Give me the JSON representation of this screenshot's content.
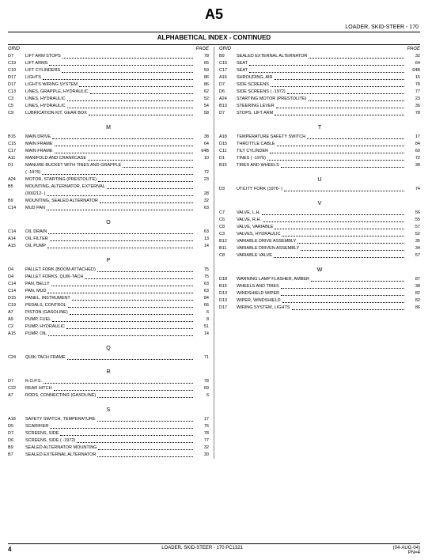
{
  "page_code": "A5",
  "header_sub": "LOADER, SKID-STEER - 170",
  "section_title": "ALPHABETICAL INDEX - CONTINUED",
  "column_headers": {
    "grid": "GRID",
    "page": "PAGE"
  },
  "footer": {
    "page_number": "4",
    "center": "LOADER, SKID-STEER - 170   PC1321",
    "right_top": "(04-AUG-04)",
    "right_bottom": "PN=4"
  },
  "left_blocks": [
    {
      "letter": null,
      "rows": [
        {
          "g": "D7",
          "l": "LIFT ARM STOPS",
          "p": "78"
        },
        {
          "g": "C19",
          "l": "LIFT ARMS",
          "p": "66"
        },
        {
          "g": "C10",
          "l": "LIFT CYLINDERS",
          "p": "59"
        },
        {
          "g": "D17",
          "l": "LIGHTS",
          "p": "86"
        },
        {
          "g": "D17",
          "l": "LIGHTS WIRING SYSTEM",
          "p": "86"
        },
        {
          "g": "C13",
          "l": "LINES, GRAPPLE, HYDRAULIC",
          "p": "62"
        },
        {
          "g": "C3",
          "l": "LINES, HYDRAULIC",
          "p": "52"
        },
        {
          "g": "C5",
          "l": "LINES, HYDRAULIC",
          "p": "54"
        },
        {
          "g": "C9",
          "l": "LUBRICATION KIT, GEAR BOX",
          "p": "58"
        }
      ]
    },
    {
      "letter": "M",
      "rows": [
        {
          "g": "B15",
          "l": "MAIN DRIVE",
          "p": "38"
        },
        {
          "g": "C15",
          "l": "MAIN FRAME",
          "p": "64"
        },
        {
          "g": "C17",
          "l": "MAIN FRAME",
          "p": "64B"
        },
        {
          "g": "A11",
          "l": "MANIFOLD AND CRANKCASE",
          "p": "10"
        },
        {
          "g": "D1",
          "l": "MANURE BUCKET WITH TINES AND GRAPPLE",
          "p": ""
        },
        {
          "g": "",
          "l": "(   -1976)",
          "p": "72"
        },
        {
          "g": "A24",
          "l": "MOTOR, STARTING (PRESTOLITE)",
          "p": "23"
        },
        {
          "g": "B5",
          "l": "MOUNTING, ALTERNATOR, EXTERNAL",
          "p": ""
        },
        {
          "g": "",
          "l": "(000212-    )",
          "p": "28"
        },
        {
          "g": "B9",
          "l": "MOUNTING, SEALED ALTERNATOR",
          "p": "32"
        },
        {
          "g": "C14",
          "l": "MUD PAN",
          "p": "63"
        }
      ]
    },
    {
      "letter": "O",
      "rows": [
        {
          "g": "C14",
          "l": "OIL DRAIN",
          "p": "63"
        },
        {
          "g": "A14",
          "l": "OIL FILTER",
          "p": "13"
        },
        {
          "g": "A15",
          "l": "OIL PUMP",
          "p": "14"
        }
      ]
    },
    {
      "letter": "P",
      "rows": [
        {
          "g": "D4",
          "l": "PALLET FORK (BOOM ATTACHED)",
          "p": "75"
        },
        {
          "g": "D4",
          "l": "PALLET FORKS, QUIK-TACH",
          "p": "75"
        },
        {
          "g": "C14",
          "l": "PAN, BELLY",
          "p": "63"
        },
        {
          "g": "C14",
          "l": "PAN, MUD",
          "p": "63"
        },
        {
          "g": "D15",
          "l": "PANEL, INSTRUMENT",
          "p": "84"
        },
        {
          "g": "C19",
          "l": "PEDALS, CONTROL",
          "p": "66"
        },
        {
          "g": "A7",
          "l": "PISTON (GASOLINE)",
          "p": "6"
        },
        {
          "g": "A9",
          "l": "PUMP, FUEL",
          "p": "8"
        },
        {
          "g": "C2",
          "l": "PUMP, HYDRAULIC",
          "p": "51"
        },
        {
          "g": "A15",
          "l": "PUMP, OIL",
          "p": "14"
        }
      ]
    },
    {
      "letter": "Q",
      "rows": [
        {
          "g": "C24",
          "l": "QUIK-TACH FRAME",
          "p": "71"
        }
      ]
    },
    {
      "letter": "R",
      "rows": [
        {
          "g": "D7",
          "l": "R.O.P.S.",
          "p": "78"
        },
        {
          "g": "C22",
          "l": "REAR HITCH",
          "p": "69"
        },
        {
          "g": "A7",
          "l": "RODS, CONNECTING (GASOLINE)",
          "p": "6"
        }
      ]
    },
    {
      "letter": "S",
      "rows": [
        {
          "g": "A18",
          "l": "SAFETY SWITCH, TEMPERATURE",
          "p": "17"
        },
        {
          "g": "D5",
          "l": "SCARIFIER",
          "p": "76"
        },
        {
          "g": "D7",
          "l": "SCREENS, SIDE",
          "p": "78"
        },
        {
          "g": "D6",
          "l": "SCREENS, SIDE (   -1972)",
          "p": "77"
        },
        {
          "g": "B9",
          "l": "SEALED ALTERNATOR MOUNTING",
          "p": "32"
        },
        {
          "g": "B7",
          "l": "SEALED EXTERNAL ALTERNATOR",
          "p": "30"
        }
      ]
    }
  ],
  "right_blocks": [
    {
      "letter": null,
      "rows": [
        {
          "g": "B9",
          "l": "SEALED EXTERNAL ALTERNATOR",
          "p": "32"
        },
        {
          "g": "C15",
          "l": "SEAT",
          "p": "64"
        },
        {
          "g": "C17",
          "l": "SEAT",
          "p": "64B"
        },
        {
          "g": "A16",
          "l": "SHROUDING, AIR",
          "p": "15"
        },
        {
          "g": "D7",
          "l": "SIDE SCREENS",
          "p": "78"
        },
        {
          "g": "D6",
          "l": "SIDE SCREENS (   -1972)",
          "p": "77"
        },
        {
          "g": "A24",
          "l": "STARTING MOTOR (PRESTOLITE)",
          "p": "23"
        },
        {
          "g": "B13",
          "l": "STEERING LEVER",
          "p": "36"
        },
        {
          "g": "D7",
          "l": "STOPS, LIFT ARM",
          "p": "78"
        }
      ]
    },
    {
      "letter": "T",
      "rows": [
        {
          "g": "A18",
          "l": "TEMPERATURE SAFETY SWITCH",
          "p": "17"
        },
        {
          "g": "D15",
          "l": "THROTTLE CABLE",
          "p": "84"
        },
        {
          "g": "C11",
          "l": "TILT CYLINDER",
          "p": "60"
        },
        {
          "g": "D1",
          "l": "TINES (   -1976)",
          "p": "72"
        },
        {
          "g": "B15",
          "l": "TIRES AND WHEELS",
          "p": "38"
        }
      ]
    },
    {
      "letter": "U",
      "rows": [
        {
          "g": "D3",
          "l": "UTILITY FORK (1976-    )",
          "p": "74"
        }
      ]
    },
    {
      "letter": "V",
      "rows": [
        {
          "g": "C7",
          "l": "VALVE, L.H.",
          "p": "56"
        },
        {
          "g": "C6",
          "l": "VALVE, R.H.",
          "p": "55"
        },
        {
          "g": "C8",
          "l": "VALVE, VARIABLE",
          "p": "57"
        },
        {
          "g": "C3",
          "l": "VALVES, HYDRAULIC",
          "p": "52"
        },
        {
          "g": "B12",
          "l": "VARIABLE DRIVE ASSEMBLY",
          "p": "35"
        },
        {
          "g": "B11",
          "l": "VARIABLE DRIVEN ASSEMBLY",
          "p": "34"
        },
        {
          "g": "C8",
          "l": "VARIABLE VALVE",
          "p": "57"
        }
      ]
    },
    {
      "letter": "W",
      "rows": [
        {
          "g": "D18",
          "l": "WARNING LAMP FLASHER, AMBER",
          "p": "87"
        },
        {
          "g": "B15",
          "l": "WHEELS AND TIRES",
          "p": "38"
        },
        {
          "g": "D13",
          "l": "WINDSHIELD WIPER",
          "p": "82"
        },
        {
          "g": "D13",
          "l": "WIPER, WINDSHIELD",
          "p": "82"
        },
        {
          "g": "D17",
          "l": "WIRING SYSTEM, LIGHTS",
          "p": "86"
        }
      ]
    }
  ]
}
